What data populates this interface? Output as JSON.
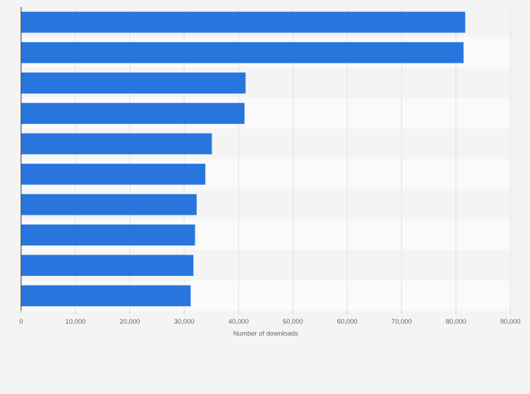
{
  "chart_data": {
    "type": "bar",
    "orientation": "horizontal",
    "categories": [
      "",
      "",
      "",
      "",
      "",
      "",
      "",
      "",
      "",
      ""
    ],
    "values": [
      81700,
      81400,
      41300,
      41100,
      35100,
      33900,
      32300,
      32000,
      31700,
      31200
    ],
    "xlim": [
      0,
      90000
    ],
    "xticks": [
      0,
      10000,
      20000,
      30000,
      40000,
      50000,
      60000,
      70000,
      80000,
      90000
    ],
    "xtick_labels": [
      "0",
      "10,000",
      "20,000",
      "30,000",
      "40,000",
      "50,000",
      "60,000",
      "70,000",
      "80,000",
      "90,000"
    ],
    "xlabel": "Number of downloads",
    "ylabel": "",
    "title": "",
    "grid": true,
    "legend": "none",
    "bar_color": "#2876dd"
  }
}
